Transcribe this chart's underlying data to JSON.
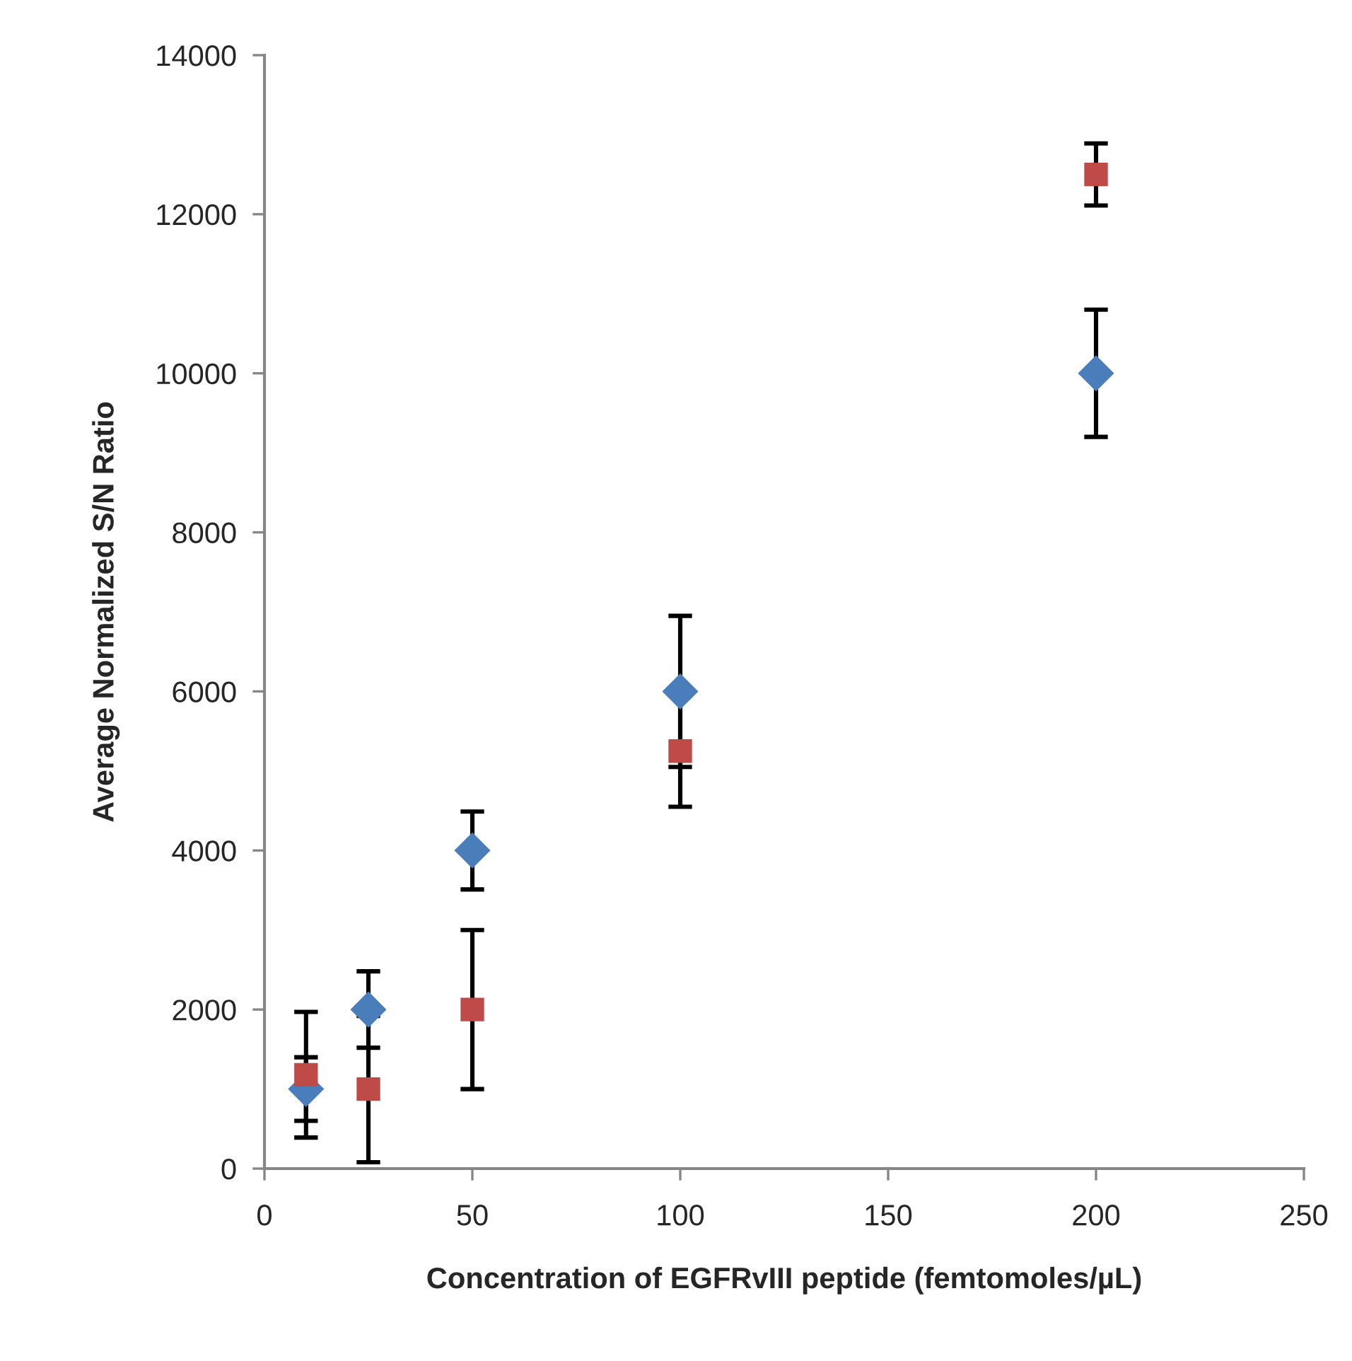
{
  "chart_data": {
    "type": "scatter",
    "xlabel": "Concentration of EGFRvIII peptide (femtomoles/µL)",
    "ylabel": "Average Normalized S/N Ratio",
    "x": [
      10,
      25,
      50,
      100,
      200
    ],
    "series": [
      {
        "color": "#4a7ebb",
        "marker": "diamond",
        "values": [
          1000,
          2000,
          4000,
          6000,
          10000
        ],
        "errors": [
          400,
          480,
          490,
          950,
          800
        ]
      },
      {
        "color": "#be4b48",
        "marker": "square",
        "values": [
          1180,
          1000,
          2000,
          5250,
          12500
        ],
        "errors": [
          790,
          920,
          1000,
          700,
          390
        ]
      }
    ],
    "xlim": [
      0,
      250
    ],
    "xticks": [
      0,
      50,
      100,
      150,
      200,
      250
    ],
    "ylim": [
      0,
      14000
    ],
    "yticks": [
      0,
      2000,
      4000,
      6000,
      8000,
      10000,
      12000,
      14000
    ],
    "grid": false,
    "legend": false
  }
}
